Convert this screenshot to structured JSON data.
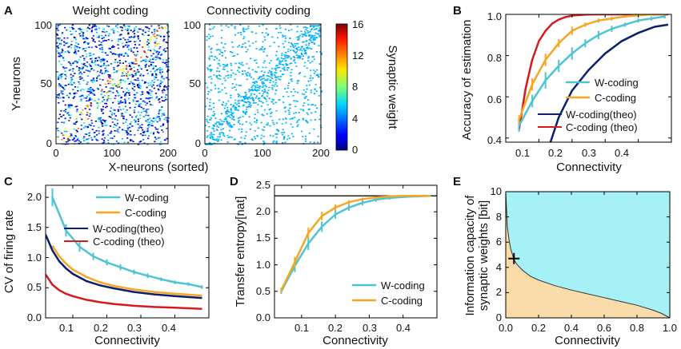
{
  "colors": {
    "w_coding": "#4dc4d2",
    "c_coding": "#f5a623",
    "w_theo": "#0b1f6e",
    "c_theo": "#d7191c",
    "info_upper": "#a6f1f5",
    "info_lower": "#f9dcaa",
    "reference": "#222222"
  },
  "chart_data": [
    {
      "panel": "A",
      "type": "heatmap",
      "title": "Weight coding",
      "xlabel": "X-neurons (sorted)",
      "ylabel": "Y-neurons",
      "xlim": [
        0,
        200
      ],
      "ylim": [
        0,
        100
      ],
      "xticks": [
        "0",
        "100",
        "200"
      ],
      "yticks": [
        "0",
        "50",
        "100"
      ],
      "description_points": 1400,
      "seed": 7
    },
    {
      "panel": "A2",
      "type": "heatmap",
      "title": "Connectivity coding",
      "xlim": [
        0,
        200
      ],
      "ylim": [
        0,
        100
      ],
      "xticks": [
        "0",
        "100",
        "200"
      ],
      "yticks": [
        "0",
        "50",
        "100"
      ],
      "description_points": 1100,
      "seed": 11
    },
    {
      "panel": "A-colorbar",
      "type": "colorbar",
      "label": "Synaptic weight",
      "range": [
        0,
        16
      ],
      "ticks": [
        "0",
        "4",
        "8",
        "12",
        "16"
      ]
    },
    {
      "panel": "B",
      "type": "line",
      "xlabel": "Connectivity",
      "ylabel": "Accuracy of estimation",
      "xlim": [
        0,
        0.5
      ],
      "ylim": [
        0.38,
        1.0
      ],
      "xticks": [
        "0.1",
        "0.2",
        "0.3",
        "0.4"
      ],
      "yticks": [
        "0.4",
        "0.6",
        "0.8",
        "1.0"
      ],
      "series": [
        {
          "name": "W-coding",
          "key": "w_coding",
          "style": "errorbar",
          "x": [
            0.04,
            0.08,
            0.12,
            0.16,
            0.2,
            0.24,
            0.28,
            0.32,
            0.36,
            0.4,
            0.44,
            0.48
          ],
          "y": [
            0.46,
            0.58,
            0.68,
            0.75,
            0.81,
            0.86,
            0.9,
            0.93,
            0.95,
            0.97,
            0.98,
            0.99
          ],
          "err": [
            0.03,
            0.03,
            0.04,
            0.03,
            0.03,
            0.02,
            0.02,
            0.015,
            0.01,
            0.01,
            0.01,
            0.01
          ]
        },
        {
          "name": "C-coding",
          "key": "c_coding",
          "style": "errorbar",
          "x": [
            0.04,
            0.08,
            0.12,
            0.16,
            0.2,
            0.24,
            0.28,
            0.32,
            0.36,
            0.4,
            0.44,
            0.48
          ],
          "y": [
            0.49,
            0.66,
            0.78,
            0.86,
            0.92,
            0.95,
            0.97,
            0.98,
            0.99,
            0.995,
            1.0,
            1.0
          ],
          "err": [
            0.02,
            0.03,
            0.03,
            0.02,
            0.02,
            0.01,
            0.01,
            0.01,
            0.005,
            0.005,
            0.0,
            0.0
          ]
        },
        {
          "name": "W-coding(theo)",
          "key": "w_theo",
          "style": "line",
          "x": [
            0.135,
            0.16,
            0.2,
            0.25,
            0.3,
            0.35,
            0.4,
            0.45,
            0.49
          ],
          "y": [
            0.38,
            0.5,
            0.63,
            0.73,
            0.81,
            0.87,
            0.91,
            0.94,
            0.95
          ]
        },
        {
          "name": "C-coding (theo)",
          "key": "c_theo",
          "style": "line",
          "x": [
            0.04,
            0.06,
            0.08,
            0.1,
            0.12,
            0.14,
            0.16,
            0.18,
            0.2,
            0.24,
            0.28,
            0.49
          ],
          "y": [
            0.44,
            0.64,
            0.78,
            0.87,
            0.92,
            0.955,
            0.975,
            0.987,
            0.994,
            0.999,
            1.0,
            1.0
          ]
        }
      ],
      "legend": "bottom-right"
    },
    {
      "panel": "C",
      "type": "line",
      "xlabel": "Connectivity",
      "ylabel": "CV of firing rate",
      "xlim": [
        0.02,
        0.5
      ],
      "ylim": [
        0,
        2.2
      ],
      "xticks": [
        "0.1",
        "0.2",
        "0.3",
        "0.4"
      ],
      "yticks": [
        "0.0",
        "0.5",
        "1.0",
        "1.5",
        "2.0"
      ],
      "series": [
        {
          "name": "W-coding",
          "key": "w_coding",
          "style": "errorbar",
          "x": [
            0.04,
            0.08,
            0.12,
            0.16,
            0.2,
            0.24,
            0.28,
            0.32,
            0.36,
            0.4,
            0.44,
            0.48
          ],
          "y": [
            2.0,
            1.45,
            1.18,
            1.02,
            0.92,
            0.84,
            0.76,
            0.7,
            0.64,
            0.59,
            0.56,
            0.51
          ],
          "err": [
            0.15,
            0.1,
            0.08,
            0.06,
            0.05,
            0.05,
            0.04,
            0.04,
            0.03,
            0.03,
            0.03,
            0.03
          ]
        },
        {
          "name": "C-coding",
          "key": "c_coding",
          "style": "line",
          "x": [
            0.04,
            0.06,
            0.08,
            0.1,
            0.14,
            0.18,
            0.22,
            0.28,
            0.34,
            0.4,
            0.48
          ],
          "y": [
            1.2,
            1.02,
            0.9,
            0.8,
            0.68,
            0.59,
            0.53,
            0.47,
            0.43,
            0.4,
            0.37
          ]
        },
        {
          "name": "W-coding(theo)",
          "key": "w_theo",
          "style": "line",
          "x": [
            0.02,
            0.04,
            0.06,
            0.08,
            0.1,
            0.14,
            0.18,
            0.22,
            0.28,
            0.34,
            0.4,
            0.48
          ],
          "y": [
            1.38,
            1.12,
            0.94,
            0.82,
            0.73,
            0.61,
            0.54,
            0.49,
            0.43,
            0.39,
            0.36,
            0.33
          ]
        },
        {
          "name": "C-coding (theo)",
          "key": "c_theo",
          "style": "line",
          "x": [
            0.02,
            0.04,
            0.06,
            0.08,
            0.1,
            0.14,
            0.18,
            0.22,
            0.28,
            0.34,
            0.4,
            0.48
          ],
          "y": [
            0.72,
            0.55,
            0.46,
            0.4,
            0.36,
            0.3,
            0.26,
            0.23,
            0.2,
            0.18,
            0.17,
            0.15
          ]
        }
      ],
      "legend": "top-right"
    },
    {
      "panel": "D",
      "type": "line",
      "xlabel": "Connectivity",
      "ylabel": "Transfer entropy[nat]",
      "xlim": [
        0.02,
        0.5
      ],
      "ylim": [
        0,
        2.5
      ],
      "xticks": [
        "0.1",
        "0.2",
        "0.3",
        "0.4"
      ],
      "yticks": [
        "0.0",
        "0.5",
        "1.0",
        "1.5",
        "2.0",
        "2.5"
      ],
      "reference_y": 2.3,
      "series": [
        {
          "name": "W-coding",
          "key": "w_coding",
          "style": "errorbar",
          "x": [
            0.04,
            0.08,
            0.12,
            0.16,
            0.2,
            0.24,
            0.28,
            0.32,
            0.36,
            0.4,
            0.44,
            0.48
          ],
          "y": [
            0.5,
            0.98,
            1.4,
            1.72,
            1.95,
            2.08,
            2.17,
            2.23,
            2.26,
            2.28,
            2.29,
            2.3
          ],
          "err": [
            0.05,
            0.12,
            0.12,
            0.1,
            0.08,
            0.06,
            0.05,
            0.04,
            0.03,
            0.02,
            0.02,
            0.01
          ]
        },
        {
          "name": "C-coding",
          "key": "c_coding",
          "style": "errorbar",
          "x": [
            0.04,
            0.08,
            0.12,
            0.16,
            0.2,
            0.24,
            0.28,
            0.32,
            0.36,
            0.4,
            0.44,
            0.48
          ],
          "y": [
            0.52,
            1.05,
            1.6,
            1.92,
            2.08,
            2.18,
            2.24,
            2.27,
            2.29,
            2.3,
            2.3,
            2.3
          ],
          "err": [
            0.05,
            0.1,
            0.1,
            0.08,
            0.06,
            0.04,
            0.03,
            0.02,
            0.01,
            0.01,
            0.0,
            0.0
          ]
        }
      ],
      "legend": "bottom-right"
    },
    {
      "panel": "E",
      "type": "area",
      "xlabel": "Connectivity",
      "ylabel_lines": [
        "Information capacity of",
        "synaptic weights [bit]"
      ],
      "xlim": [
        0,
        1
      ],
      "ylim": [
        0,
        10
      ],
      "xticks": [
        "0.0",
        "0.2",
        "0.4",
        "0.6",
        "0.8",
        "1.0"
      ],
      "yticks": [
        "0",
        "2",
        "4",
        "6",
        "8",
        "10"
      ],
      "boundary": {
        "x": [
          0.0,
          0.01,
          0.02,
          0.03,
          0.05,
          0.07,
          0.1,
          0.15,
          0.2,
          0.3,
          0.4,
          0.5,
          0.6,
          0.7,
          0.8,
          0.9,
          0.95,
          1.0
        ],
        "y": [
          10.0,
          7.2,
          6.2,
          5.5,
          4.6,
          4.2,
          3.8,
          3.3,
          3.0,
          2.55,
          2.2,
          1.9,
          1.6,
          1.3,
          1.0,
          0.6,
          0.35,
          0.0
        ]
      },
      "marker": {
        "x": 0.05,
        "y": 4.7,
        "symbol": "+"
      }
    }
  ],
  "panels": {
    "A": "A",
    "B": "B",
    "C": "C",
    "D": "D",
    "E": "E"
  }
}
